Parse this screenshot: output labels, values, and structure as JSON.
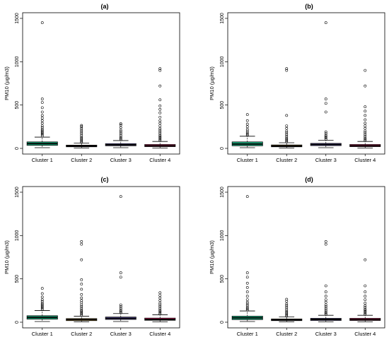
{
  "figure": {
    "panels": [
      {
        "label": "(a)"
      },
      {
        "label": "(b)"
      },
      {
        "label": "(c)"
      },
      {
        "label": "(d)"
      }
    ]
  },
  "chart_data": [
    {
      "type": "box",
      "title": "(a)",
      "ylabel": "PM10 (µg/m3)",
      "yticks": [
        0,
        500,
        1000,
        1500
      ],
      "ylim": [
        0,
        1500
      ],
      "categories": [
        "Cluster 1",
        "Cluster 2",
        "Cluster 3",
        "Cluster 4"
      ],
      "colors": [
        "#1a9b72",
        "#e0a81e",
        "#5e4fa5",
        "#d81b60"
      ],
      "boxes": [
        {
          "whisker_low": 8,
          "q1": 35,
          "median": 55,
          "q3": 75,
          "whisker_high": 130,
          "outliers": [
            145,
            160,
            175,
            190,
            205,
            220,
            240,
            260,
            290,
            320,
            350,
            380,
            420,
            470,
            530,
            570,
            1450
          ]
        },
        {
          "whisker_low": 5,
          "q1": 18,
          "median": 28,
          "q3": 38,
          "whisker_high": 60,
          "outliers": [
            70,
            85,
            100,
            115,
            130,
            150,
            170,
            190,
            210,
            230,
            250,
            265
          ]
        },
        {
          "whisker_low": 8,
          "q1": 30,
          "median": 42,
          "q3": 55,
          "whisker_high": 90,
          "outliers": [
            100,
            115,
            130,
            150,
            170,
            190,
            210,
            240,
            270,
            285
          ]
        },
        {
          "whisker_low": 5,
          "q1": 20,
          "median": 30,
          "q3": 45,
          "whisker_high": 80,
          "outliers": [
            90,
            105,
            120,
            135,
            150,
            170,
            190,
            210,
            230,
            260,
            290,
            320,
            360,
            410,
            450,
            490,
            560,
            720,
            900,
            920
          ]
        }
      ]
    },
    {
      "type": "box",
      "title": "(b)",
      "ylabel": "PM10 (µg/m3)",
      "yticks": [
        0,
        500,
        1000,
        1500
      ],
      "ylim": [
        0,
        1500
      ],
      "categories": [
        "Cluster 1",
        "Cluster 2",
        "Cluster 3",
        "Cluster 4"
      ],
      "colors": [
        "#1a9b72",
        "#e0a81e",
        "#5e4fa5",
        "#d81b60"
      ],
      "boxes": [
        {
          "whisker_low": 8,
          "q1": 30,
          "median": 50,
          "q3": 75,
          "whisker_high": 140,
          "outliers": [
            150,
            165,
            180,
            200,
            220,
            250,
            280,
            320,
            390
          ]
        },
        {
          "whisker_low": 5,
          "q1": 18,
          "median": 28,
          "q3": 40,
          "whisker_high": 65,
          "outliers": [
            75,
            90,
            105,
            120,
            140,
            160,
            180,
            200,
            230,
            260,
            380,
            900,
            920
          ]
        },
        {
          "whisker_low": 8,
          "q1": 32,
          "median": 45,
          "q3": 58,
          "whisker_high": 95,
          "outliers": [
            105,
            120,
            135,
            150,
            170,
            190,
            420,
            520,
            570,
            1450
          ]
        },
        {
          "whisker_low": 5,
          "q1": 20,
          "median": 30,
          "q3": 45,
          "whisker_high": 80,
          "outliers": [
            90,
            105,
            120,
            140,
            160,
            180,
            200,
            230,
            260,
            290,
            330,
            380,
            430,
            480,
            720,
            900
          ]
        }
      ]
    },
    {
      "type": "box",
      "title": "(c)",
      "ylabel": "PM10 (µg/m3)",
      "yticks": [
        0,
        500,
        1000,
        1500
      ],
      "ylim": [
        0,
        1500
      ],
      "categories": [
        "Cluster 1",
        "Cluster 2",
        "Cluster 3",
        "Cluster 4"
      ],
      "colors": [
        "#1a9b72",
        "#e0a81e",
        "#5e4fa5",
        "#d81b60"
      ],
      "boxes": [
        {
          "whisker_low": 8,
          "q1": 35,
          "median": 55,
          "q3": 75,
          "whisker_high": 135,
          "outliers": [
            145,
            160,
            175,
            190,
            205,
            220,
            240,
            260,
            290,
            330,
            390
          ]
        },
        {
          "whisker_low": 5,
          "q1": 18,
          "median": 30,
          "q3": 42,
          "whisker_high": 70,
          "outliers": [
            80,
            95,
            110,
            125,
            140,
            160,
            180,
            200,
            225,
            250,
            280,
            320,
            380,
            440,
            490,
            720,
            900,
            930
          ]
        },
        {
          "whisker_low": 8,
          "q1": 32,
          "median": 45,
          "q3": 60,
          "whisker_high": 100,
          "outliers": [
            110,
            125,
            140,
            160,
            180,
            200,
            520,
            570,
            1450
          ]
        },
        {
          "whisker_low": 5,
          "q1": 22,
          "median": 32,
          "q3": 48,
          "whisker_high": 85,
          "outliers": [
            95,
            110,
            125,
            140,
            160,
            180,
            200,
            220,
            250,
            280,
            310,
            340
          ]
        }
      ]
    },
    {
      "type": "box",
      "title": "(d)",
      "ylabel": "PM10 (µg/m3)",
      "yticks": [
        0,
        500,
        1000,
        1500
      ],
      "ylim": [
        0,
        1500
      ],
      "categories": [
        "Cluster 1",
        "Cluster 2",
        "Cluster 3",
        "Cluster 4"
      ],
      "colors": [
        "#1a9b72",
        "#e0a81e",
        "#5e4fa5",
        "#d81b60"
      ],
      "boxes": [
        {
          "whisker_low": 8,
          "q1": 30,
          "median": 50,
          "q3": 70,
          "whisker_high": 130,
          "outliers": [
            140,
            155,
            170,
            190,
            210,
            230,
            260,
            300,
            350,
            400,
            450,
            520,
            570,
            1450
          ]
        },
        {
          "whisker_low": 5,
          "q1": 18,
          "median": 28,
          "q3": 38,
          "whisker_high": 60,
          "outliers": [
            70,
            85,
            100,
            115,
            130,
            150,
            170,
            190,
            210,
            240,
            265
          ]
        },
        {
          "whisker_low": 5,
          "q1": 20,
          "median": 32,
          "q3": 45,
          "whisker_high": 80,
          "outliers": [
            90,
            105,
            120,
            140,
            160,
            180,
            200,
            230,
            260,
            300,
            350,
            420,
            900,
            930
          ]
        },
        {
          "whisker_low": 5,
          "q1": 20,
          "median": 30,
          "q3": 45,
          "whisker_high": 80,
          "outliers": [
            90,
            105,
            120,
            135,
            150,
            170,
            190,
            220,
            260,
            300,
            350,
            420,
            720
          ]
        }
      ]
    }
  ]
}
